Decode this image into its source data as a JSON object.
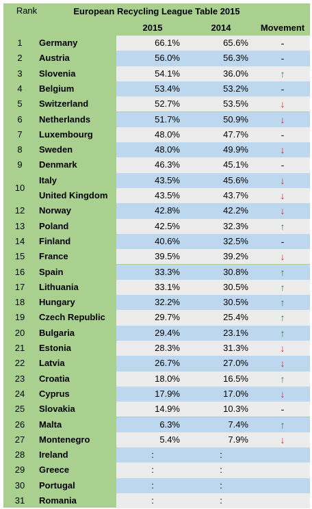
{
  "title": "European Recycling League Table 2015",
  "headers": {
    "rank": "Rank",
    "y2015": "2015",
    "y2014": "2014",
    "movement": "Movement"
  },
  "colors": {
    "green": "#a9d08e",
    "grey": "#ececec",
    "blue": "#bdd7ee",
    "up": "#2e7d32",
    "down": "#e02020"
  },
  "rows": [
    {
      "rank": "1",
      "country": "Germany",
      "v2015": "66.1%",
      "v2014": "65.6%",
      "move": "-"
    },
    {
      "rank": "2",
      "country": "Austria",
      "v2015": "56.0%",
      "v2014": "56.3%",
      "move": "-"
    },
    {
      "rank": "3",
      "country": "Slovenia",
      "v2015": "54.1%",
      "v2014": "36.0%",
      "move": "↑"
    },
    {
      "rank": "4",
      "country": "Belgium",
      "v2015": "53.4%",
      "v2014": "53.2%",
      "move": "-"
    },
    {
      "rank": "5",
      "country": "Switzerland",
      "v2015": "52.7%",
      "v2014": "53.5%",
      "move": "↓"
    },
    {
      "rank": "6",
      "country": "Netherlands",
      "v2015": "51.7%",
      "v2014": "50.9%",
      "move": "↓"
    },
    {
      "rank": "7",
      "country": "Luxembourg",
      "v2015": "48.0%",
      "v2014": "47.7%",
      "move": "-"
    },
    {
      "rank": "8",
      "country": "Sweden",
      "v2015": "48.0%",
      "v2014": "49.9%",
      "move": "↓"
    },
    {
      "rank": "9",
      "country": "Denmark",
      "v2015": "46.3%",
      "v2014": "45.1%",
      "move": "-"
    },
    {
      "rank": "",
      "country": "Italy",
      "v2015": "43.5%",
      "v2014": "45.6%",
      "move": "↓"
    },
    {
      "rank": "",
      "country": "United Kingdom",
      "v2015": "43.5%",
      "v2014": "43.7%",
      "move": "↓"
    },
    {
      "rank": "12",
      "country": "Norway",
      "v2015": "42.8%",
      "v2014": "42.2%",
      "move": "↓"
    },
    {
      "rank": "13",
      "country": "Poland",
      "v2015": "42.5%",
      "v2014": "32.3%",
      "move": "↑"
    },
    {
      "rank": "14",
      "country": "Finland",
      "v2015": "40.6%",
      "v2014": "32.5%",
      "move": "-"
    },
    {
      "rank": "15",
      "country": "France",
      "v2015": "39.5%",
      "v2014": "39.2%",
      "move": "↓"
    },
    {
      "rank": "16",
      "country": "Spain",
      "v2015": "33.3%",
      "v2014": "30.8%",
      "move": "↑"
    },
    {
      "rank": "17",
      "country": "Lithuania",
      "v2015": "33.1%",
      "v2014": "30.5%",
      "move": "↑"
    },
    {
      "rank": "18",
      "country": "Hungary",
      "v2015": "32.2%",
      "v2014": "30.5%",
      "move": "↑"
    },
    {
      "rank": "19",
      "country": "Czech Republic",
      "v2015": "29.7%",
      "v2014": "25.4%",
      "move": "↑"
    },
    {
      "rank": "20",
      "country": "Bulgaria",
      "v2015": "29.4%",
      "v2014": "23.1%",
      "move": "↑"
    },
    {
      "rank": "21",
      "country": "Estonia",
      "v2015": "28.3%",
      "v2014": "31.3%",
      "move": "↓"
    },
    {
      "rank": "22",
      "country": "Latvia",
      "v2015": "26.7%",
      "v2014": "27.0%",
      "move": "↓"
    },
    {
      "rank": "23",
      "country": "Croatia",
      "v2015": "18.0%",
      "v2014": "16.5%",
      "move": "↑"
    },
    {
      "rank": "24",
      "country": "Cyprus",
      "v2015": "17.9%",
      "v2014": "17.0%",
      "move": "↓"
    },
    {
      "rank": "25",
      "country": "Slovakia",
      "v2015": "14.9%",
      "v2014": "10.3%",
      "move": "-"
    },
    {
      "rank": "26",
      "country": "Malta",
      "v2015": "6.3%",
      "v2014": "7.4%",
      "move": "↑"
    },
    {
      "rank": "27",
      "country": "Montenegro",
      "v2015": "5.4%",
      "v2014": "7.9%",
      "move": "↓"
    },
    {
      "rank": "28",
      "country": "Ireland",
      "v2015": ":",
      "v2014": ":",
      "move": ""
    },
    {
      "rank": "29",
      "country": "Greece",
      "v2015": ":",
      "v2014": ":",
      "move": ""
    },
    {
      "rank": "30",
      "country": "Portugal",
      "v2015": ":",
      "v2014": ":",
      "move": ""
    },
    {
      "rank": "31",
      "country": "Romania",
      "v2015": ":",
      "v2014": ":",
      "move": ""
    }
  ],
  "merged_rank": "10"
}
